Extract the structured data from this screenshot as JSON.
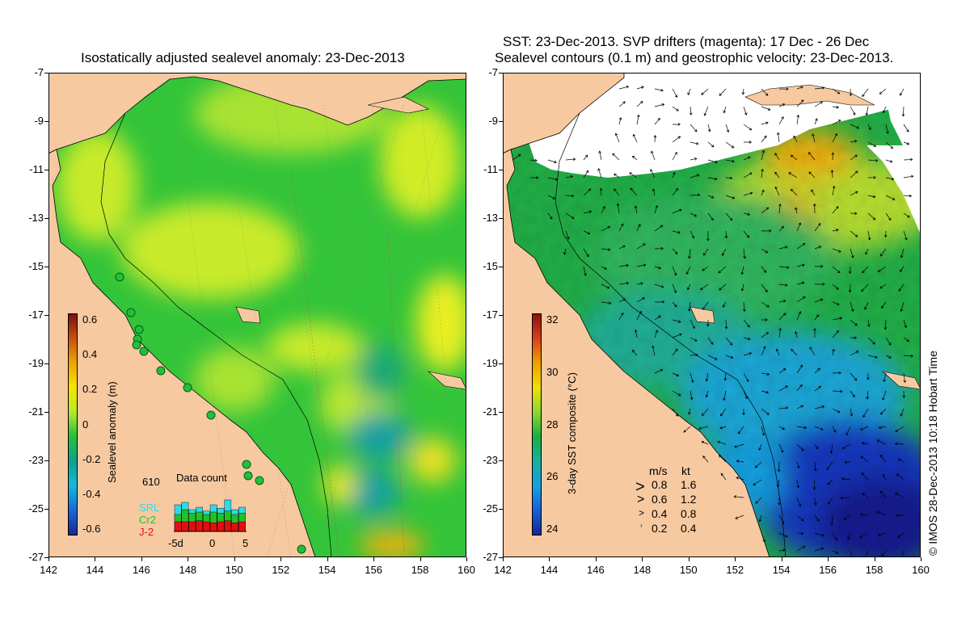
{
  "left_panel": {
    "title": "Isostatically adjusted sealevel anomaly: 23-Dec-2013",
    "colorbar": {
      "label": "Sealevel anomaly (m)",
      "ticks": [
        "0.6",
        "0.4",
        "0.2",
        "0",
        "-0.2",
        "-0.4",
        "-0.6"
      ],
      "colors": [
        "#7a0f0f",
        "#c8520f",
        "#f0a400",
        "#f5e600",
        "#b8e82a",
        "#22c03a",
        "#10a08c",
        "#16b8d8",
        "#1a68d8",
        "#162890"
      ]
    },
    "data_count": {
      "count_value": "610",
      "title": "Data count",
      "satellites": [
        {
          "name": "SRL",
          "color": "#30d8e8"
        },
        {
          "name": "Cr2",
          "color": "#22c02a"
        },
        {
          "name": "J-2",
          "color": "#e01010"
        }
      ],
      "xticks": [
        "-5d",
        "0",
        "5"
      ],
      "bars": [
        {
          "srl": 0.55,
          "cr2": 0.35,
          "j2": 0.2
        },
        {
          "srl": 0.6,
          "cr2": 0.45,
          "j2": 0.2
        },
        {
          "srl": 0.45,
          "cr2": 0.38,
          "j2": 0.2
        },
        {
          "srl": 0.5,
          "cr2": 0.4,
          "j2": 0.22
        },
        {
          "srl": 0.42,
          "cr2": 0.35,
          "j2": 0.2
        },
        {
          "srl": 0.55,
          "cr2": 0.4,
          "j2": 0.18
        },
        {
          "srl": 0.48,
          "cr2": 0.38,
          "j2": 0.2
        },
        {
          "srl": 0.65,
          "cr2": 0.42,
          "j2": 0.22
        },
        {
          "srl": 0.45,
          "cr2": 0.35,
          "j2": 0.18
        },
        {
          "srl": 0.5,
          "cr2": 0.38,
          "j2": 0.2
        }
      ]
    }
  },
  "right_panel": {
    "title_line1": "SST: 23-Dec-2013. SVP drifters (magenta): 17 Dec - 26 Dec",
    "title_line2": "Sealevel contours (0.1 m) and geostrophic velocity: 23-Dec-2013.",
    "colorbar": {
      "label": "3-day SST composite (°C)",
      "ticks": [
        "32",
        "30",
        "28",
        "26",
        "24"
      ],
      "colors": [
        "#8a1010",
        "#d8401a",
        "#f0a000",
        "#f0e000",
        "#8ed830",
        "#18b040",
        "#18b0a0",
        "#18a0e0",
        "#1860d8",
        "#142890"
      ]
    },
    "velocity_legend": {
      "header_ms": "m/s",
      "header_kt": "kt",
      "rows": [
        {
          "ms": "0.8",
          "kt": "1.6"
        },
        {
          "ms": "0.6",
          "kt": "1.2"
        },
        {
          "ms": "0.4",
          "kt": "0.8"
        },
        {
          "ms": "0.2",
          "kt": "0.4"
        }
      ]
    }
  },
  "axes": {
    "x_ticks": [
      "142",
      "144",
      "146",
      "148",
      "150",
      "152",
      "154",
      "156",
      "158",
      "160"
    ],
    "y_ticks": [
      "-7",
      "-9",
      "-11",
      "-13",
      "-15",
      "-17",
      "-19",
      "-21",
      "-23",
      "-25",
      "-27"
    ],
    "lon_range": [
      142,
      160
    ],
    "lat_range": [
      -7,
      -27
    ]
  },
  "credit": "© IMOS 28-Dec-2013 10:18 Hobart Time",
  "colors": {
    "land": "#f7c9a0",
    "ocean_green": "#33c43a",
    "ocean_yellow": "#b8e630",
    "sst_white": "#ffffff"
  }
}
